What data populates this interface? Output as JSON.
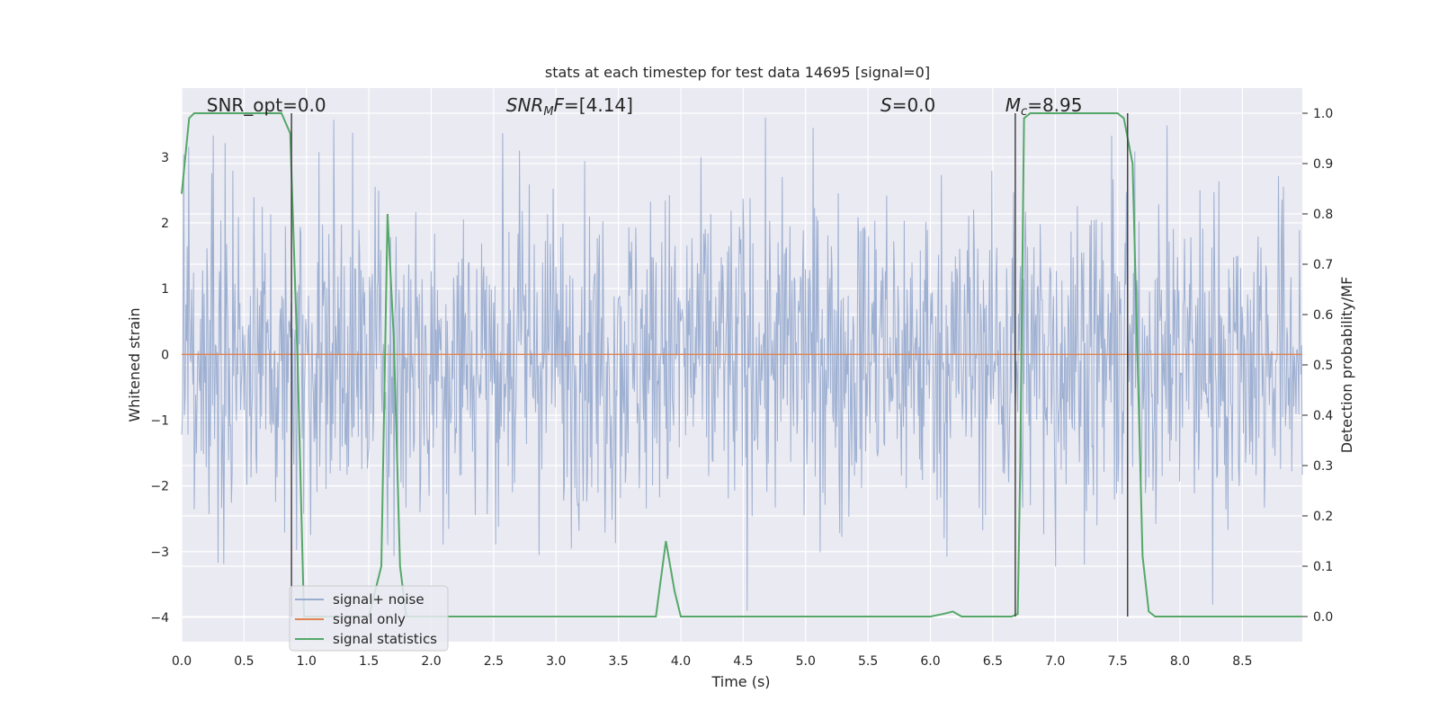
{
  "chart_data": {
    "type": "line",
    "title": "stats at each timestep for test data 14695 [signal=0]",
    "xlabel": "Time (s)",
    "ylabel_left": "Whitened strain",
    "ylabel_right": "Detection probability/MF",
    "xlim": [
      0.0,
      8.98
    ],
    "ylim_left": [
      -4.37,
      4.05
    ],
    "ylim_right": [
      -0.05,
      1.05
    ],
    "xticks": [
      "0.0",
      "0.5",
      "1.0",
      "1.5",
      "2.0",
      "2.5",
      "3.0",
      "3.5",
      "4.0",
      "4.5",
      "5.0",
      "5.5",
      "6.0",
      "6.5",
      "7.0",
      "7.5",
      "8.0",
      "8.5"
    ],
    "yticks_left": [
      "3",
      "2",
      "1",
      "0",
      "−1",
      "−2",
      "−3",
      "−4"
    ],
    "yticks_right": [
      "1.0",
      "0.9",
      "0.8",
      "0.7",
      "0.6",
      "0.5",
      "0.4",
      "0.3",
      "0.2",
      "0.1",
      "0.0"
    ],
    "grid": true,
    "legend_position": "lower-left",
    "annotations": [
      {
        "text": "SNR_opt=0.0",
        "x": 0.2
      },
      {
        "html": "SNR<tspan font-size='12' dy='4'>M</tspan><tspan dy='-4'>F=[4.14]</tspan>",
        "text": "SNR_MF=[4.14]",
        "x": 2.6,
        "italic_prefix": true
      },
      {
        "text": "S=0.0",
        "x": 5.6
      },
      {
        "text": "M_c=8.95",
        "x": 6.6
      }
    ],
    "series": [
      {
        "name": "signal+ noise",
        "color": "#9aadd0",
        "axis": "left",
        "kind": "noise",
        "amplitude_range": [
          -3.9,
          3.6
        ]
      },
      {
        "name": "signal only",
        "color": "#dd8452",
        "axis": "left",
        "x": [
          0.0,
          8.98
        ],
        "values": [
          0.0,
          0.0
        ]
      },
      {
        "name": "signal statistics",
        "color": "#55a868",
        "axis": "right",
        "x": [
          0.0,
          0.06,
          0.1,
          0.2,
          0.3,
          0.4,
          0.5,
          0.6,
          0.7,
          0.8,
          0.87,
          0.93,
          0.98,
          1.05,
          1.1,
          1.2,
          1.3,
          1.4,
          1.5,
          1.6,
          1.65,
          1.7,
          1.75,
          1.8,
          1.85,
          1.9,
          2.0,
          2.5,
          3.0,
          3.5,
          3.8,
          3.88,
          3.95,
          4.0,
          4.5,
          5.0,
          5.5,
          6.0,
          6.1,
          6.18,
          6.25,
          6.5,
          6.65,
          6.7,
          6.72,
          6.75,
          6.8,
          7.0,
          7.2,
          7.5,
          7.55,
          7.62,
          7.7,
          7.75,
          7.8,
          8.0,
          8.5,
          8.98
        ],
        "values": [
          0.84,
          0.99,
          1.0,
          1.0,
          1.0,
          1.0,
          1.0,
          1.0,
          1.0,
          1.0,
          0.96,
          0.5,
          0.0,
          0.0,
          0.0,
          0.0,
          0.0,
          0.0,
          0.0,
          0.1,
          0.8,
          0.55,
          0.1,
          0.0,
          0.0,
          0.0,
          0.0,
          0.0,
          0.0,
          0.0,
          0.0,
          0.15,
          0.05,
          0.0,
          0.0,
          0.0,
          0.0,
          0.0,
          0.005,
          0.01,
          0.0,
          0.0,
          0.0,
          0.005,
          0.3,
          0.99,
          1.0,
          1.0,
          1.0,
          1.0,
          0.99,
          0.9,
          0.12,
          0.01,
          0.0,
          0.0,
          0.0,
          0.0
        ]
      }
    ],
    "vertical_markers_x": [
      0.88,
      6.68,
      7.58
    ]
  }
}
